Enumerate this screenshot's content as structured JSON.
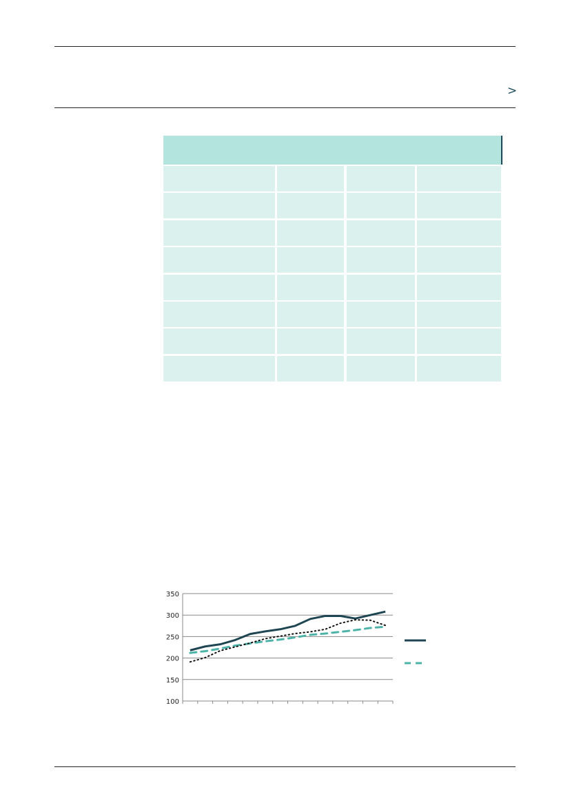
{
  "header": {
    "nav_glyph": ">"
  },
  "table": {
    "rows": 8,
    "columns": 4,
    "header_color": "#b4e4de",
    "cell_color": "#daf1ed"
  },
  "chart_data": {
    "type": "line",
    "ylim": [
      100,
      350
    ],
    "yticks": [
      "100",
      "150",
      "200",
      "250",
      "300",
      "350"
    ],
    "grid": true,
    "legend": "right",
    "categories_count": 14,
    "series": [
      {
        "style": "solid",
        "color": "#1d4552",
        "values": [
          218,
          227,
          232,
          242,
          256,
          262,
          267,
          275,
          291,
          298,
          298,
          292,
          300,
          308
        ]
      },
      {
        "style": "dashed",
        "color": "#4db3a8",
        "values": [
          212,
          216,
          222,
          229,
          234,
          239,
          243,
          248,
          254,
          257,
          261,
          265,
          270,
          273
        ]
      },
      {
        "style": "dotted",
        "color": "#111111",
        "values": [
          191,
          201,
          217,
          226,
          235,
          245,
          251,
          257,
          261,
          267,
          281,
          289,
          288,
          276
        ]
      }
    ]
  }
}
